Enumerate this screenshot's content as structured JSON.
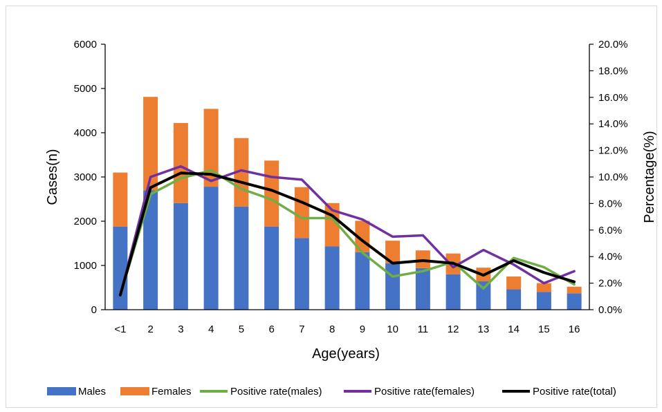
{
  "chart_data": {
    "type": "bar",
    "stacked": true,
    "xlabel": "Age(years)",
    "ylabel": "Cases(n)",
    "y2label": "Percentage(%)",
    "categories": [
      "<1",
      "2",
      "3",
      "4",
      "5",
      "6",
      "7",
      "8",
      "9",
      "10",
      "11",
      "12",
      "13",
      "14",
      "15",
      "16"
    ],
    "ylim": [
      0,
      6000
    ],
    "yticks": [
      "0",
      "1000",
      "2000",
      "3000",
      "4000",
      "5000",
      "6000"
    ],
    "y2lim": [
      0,
      20
    ],
    "y2ticks": [
      "0.0%",
      "2.0%",
      "4.0%",
      "6.0%",
      "8.0%",
      "10.0%",
      "12.0%",
      "14.0%",
      "16.0%",
      "18.0%",
      "20.0%"
    ],
    "series": [
      {
        "name": "Males",
        "kind": "bar",
        "color": "#4472C4",
        "values": [
          1880,
          2700,
          2410,
          2780,
          2330,
          1880,
          1620,
          1430,
          1300,
          1050,
          940,
          800,
          640,
          460,
          400,
          370
        ]
      },
      {
        "name": "Females",
        "kind": "bar",
        "color": "#ED7D31",
        "values": [
          1220,
          2110,
          1810,
          1760,
          1550,
          1490,
          1150,
          980,
          710,
          510,
          400,
          470,
          310,
          290,
          200,
          150
        ]
      },
      {
        "name": "Positive rate(males)",
        "kind": "line",
        "axis": "right",
        "color": "#70AD47",
        "values": [
          1.1,
          8.7,
          9.9,
          10.5,
          9.1,
          8.3,
          6.9,
          6.9,
          4.3,
          2.5,
          2.9,
          3.6,
          1.6,
          3.9,
          3.2,
          1.9
        ]
      },
      {
        "name": "Positive rate(females)",
        "kind": "line",
        "axis": "right",
        "color": "#7030A0",
        "values": [
          1.1,
          10.0,
          10.8,
          9.7,
          10.5,
          10.0,
          9.8,
          7.5,
          6.8,
          5.5,
          5.6,
          3.2,
          4.5,
          3.4,
          2.0,
          2.9
        ]
      },
      {
        "name": "Positive rate(total)",
        "kind": "line",
        "axis": "right",
        "color": "#000000",
        "values": [
          1.1,
          9.2,
          10.3,
          10.2,
          9.6,
          9.0,
          8.1,
          7.1,
          5.2,
          3.5,
          3.7,
          3.5,
          2.6,
          3.7,
          2.8,
          2.1
        ]
      }
    ],
    "legend": "bottom",
    "grid": false
  }
}
